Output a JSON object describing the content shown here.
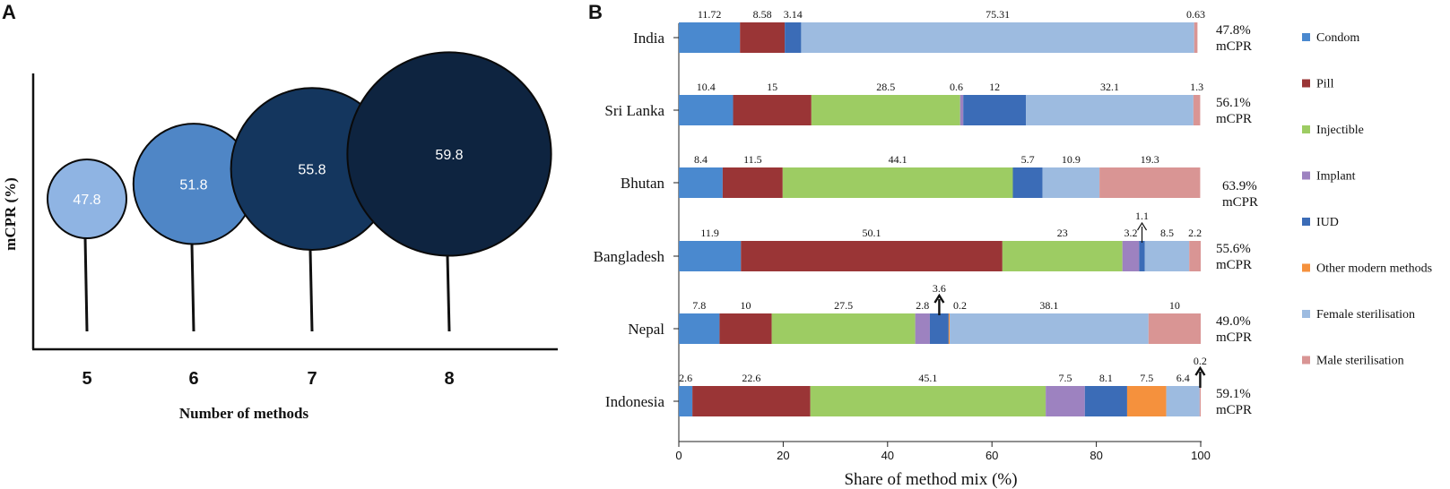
{
  "panels": {
    "a_letter": "A",
    "b_letter": "B"
  },
  "chart_data": [
    {
      "type": "scatter",
      "title": "",
      "xlabel": "Number of methods",
      "ylabel": "mCPR (%)",
      "categories": [
        "5",
        "6",
        "7",
        "8"
      ],
      "values": [
        47.8,
        51.8,
        55.8,
        59.8
      ],
      "value_labels": [
        "47.8",
        "51.8",
        "55.8",
        "59.8"
      ],
      "colors": [
        "#8fb4e3",
        "#4f86c6",
        "#14365e",
        "#0e2440"
      ]
    },
    {
      "type": "bar",
      "orientation": "horizontal",
      "stacked": true,
      "xlabel": "Share of method mix (%)",
      "xlim": [
        0,
        100
      ],
      "xticks": [
        "0",
        "20",
        "40",
        "60",
        "80",
        "100"
      ],
      "methods": [
        "Condom",
        "Pill",
        "Injectible",
        "Implant",
        "IUD",
        "Other modern methods",
        "Female sterilisation",
        "Male sterilisation"
      ],
      "colors": [
        "#4a89cf",
        "#9a3536",
        "#9dcc63",
        "#9d82c0",
        "#3b6cb7",
        "#f5913d",
        "#9dbbe0",
        "#d99594"
      ],
      "countries": [
        {
          "name": "India",
          "values": [
            11.72,
            8.58,
            0,
            0,
            3.14,
            0,
            75.31,
            0.63
          ],
          "labels": [
            "11.72",
            "8.58",
            "",
            "",
            "3.14",
            "",
            "75.31",
            "0.63"
          ],
          "mcpr_value": "47.8%",
          "mcpr_unit": "mCPR"
        },
        {
          "name": "Sri Lanka",
          "values": [
            10.4,
            15,
            28.5,
            0.6,
            12,
            0,
            32.1,
            1.3
          ],
          "labels": [
            "10.4",
            "15",
            "28.5",
            "0.6",
            "12",
            "",
            "32.1",
            "1.3"
          ],
          "mcpr_value": "56.1%",
          "mcpr_unit": "mCPR"
        },
        {
          "name": "Bhutan",
          "values": [
            8.4,
            11.5,
            44.1,
            0,
            5.7,
            0,
            10.9,
            19.3
          ],
          "labels": [
            "8.4",
            "11.5",
            "44.1",
            "",
            "5.7",
            "",
            "10.9",
            "19.3"
          ],
          "mcpr_value": "63.9%",
          "mcpr_unit": "mCPR"
        },
        {
          "name": "Bangladesh",
          "values": [
            11.9,
            50.1,
            23,
            3.2,
            1.1,
            0,
            8.5,
            2.2
          ],
          "labels": [
            "11.9",
            "50.1",
            "23",
            "3.2",
            "1.1",
            "",
            "8.5",
            "2.2"
          ],
          "mcpr_value": "55.6%",
          "mcpr_unit": "mCPR"
        },
        {
          "name": "Nepal",
          "values": [
            7.8,
            10,
            27.5,
            2.8,
            3.6,
            0.2,
            38.1,
            10
          ],
          "labels": [
            "7.8",
            "10",
            "27.5",
            "2.8",
            "3.6",
            "0.2",
            "38.1",
            "10"
          ],
          "mcpr_value": "49.0%",
          "mcpr_unit": "mCPR"
        },
        {
          "name": "Indonesia",
          "values": [
            2.6,
            22.6,
            45.1,
            7.5,
            8.1,
            7.5,
            6.4,
            0.2
          ],
          "labels": [
            "2.6",
            "22.6",
            "45.1",
            "7.5",
            "8.1",
            "7.5",
            "6.4",
            "0.2"
          ],
          "mcpr_value": "59.1%",
          "mcpr_unit": "mCPR"
        }
      ]
    }
  ]
}
